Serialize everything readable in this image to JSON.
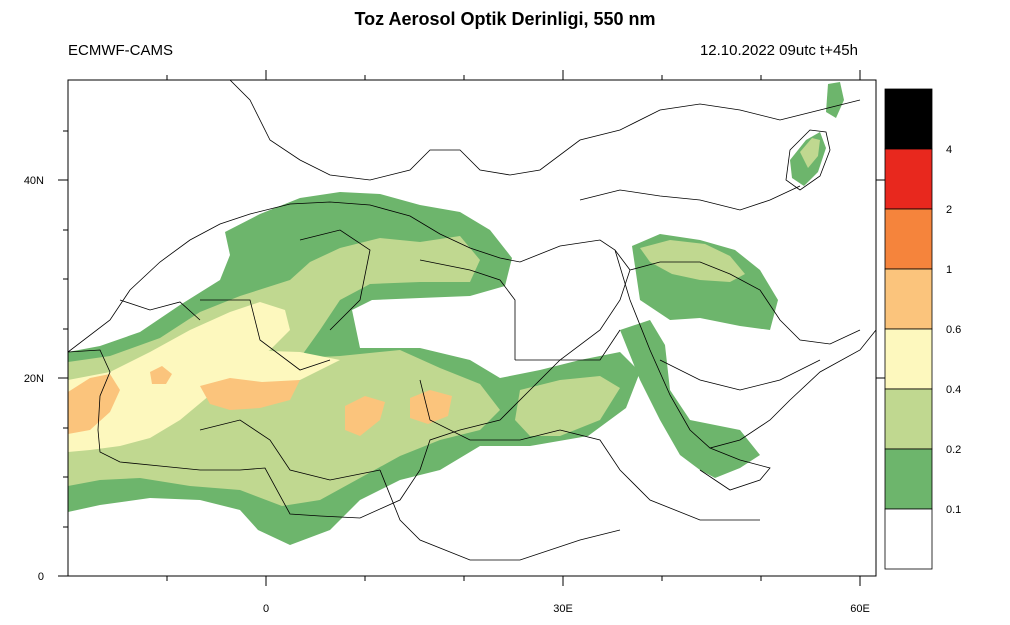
{
  "title": "Toz Aerosol Optik Derinligi, 550 nm",
  "source": "ECMWF-CAMS",
  "forecast_time": "12.10.2022 09utc t+45h",
  "axes": {
    "lon_labels": [
      "0",
      "30E",
      "60E"
    ],
    "lat_labels": [
      "40N",
      "20N",
      "0"
    ]
  },
  "legend": {
    "colors": [
      "#000000",
      "#e8281e",
      "#f5843c",
      "#fbc47c",
      "#fdf8be",
      "#c0d890",
      "#6db56c",
      "#ffffff"
    ],
    "labels": [
      "4",
      "2",
      "1",
      "0.6",
      "0.4",
      "0.2",
      "0.1"
    ]
  },
  "colors": {
    "aod_0_1": "#6db56c",
    "aod_0_2": "#c0d890",
    "aod_0_4": "#fdf8be",
    "aod_0_6": "#fbc47c",
    "aod_1": "#f5843c",
    "aod_2": "#e8281e",
    "aod_4": "#000000"
  }
}
